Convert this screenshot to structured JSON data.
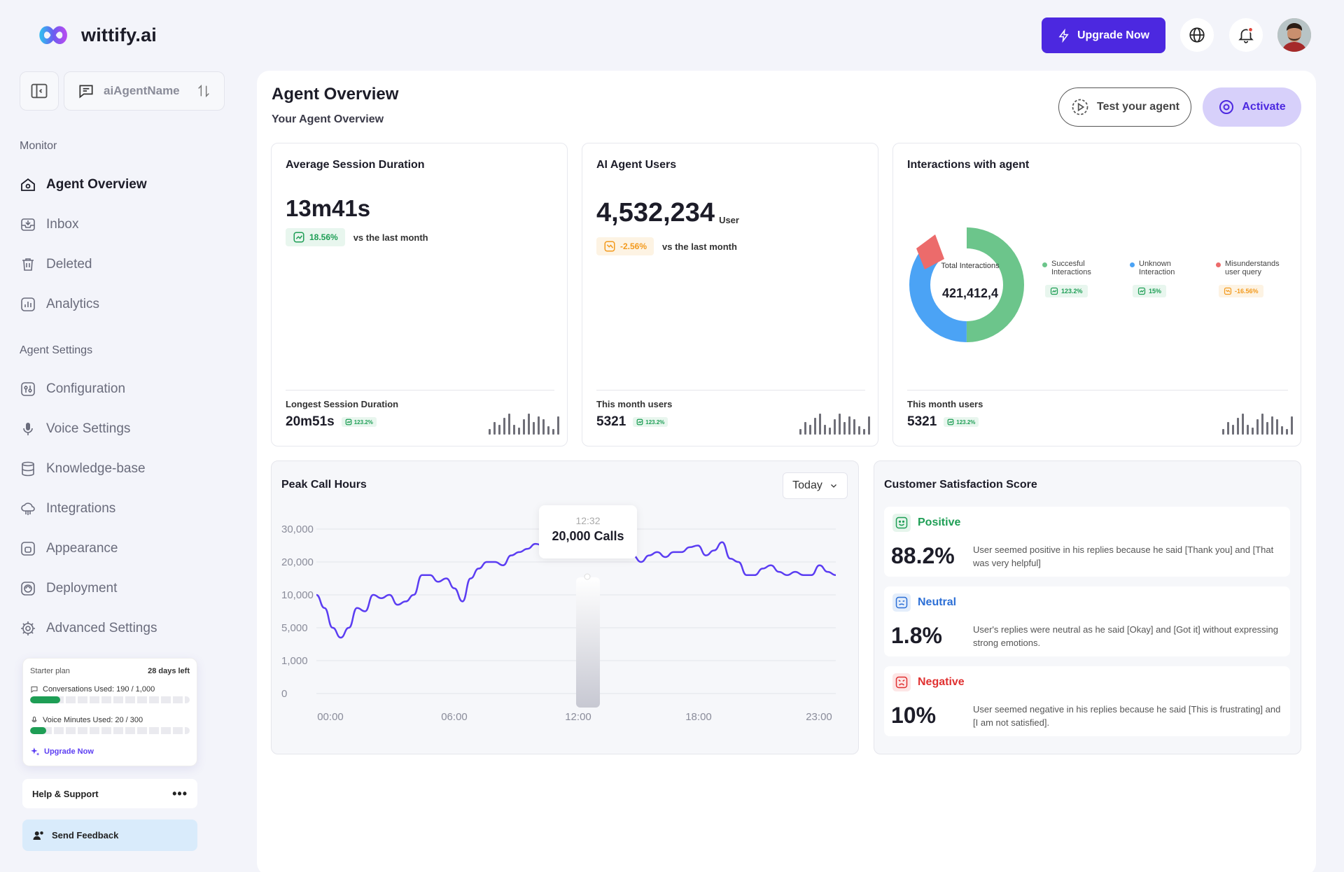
{
  "brand": {
    "name": "wittify.ai"
  },
  "header": {
    "upgrade_label": "Upgrade Now",
    "icons": [
      "globe-icon",
      "bell-icon",
      "avatar"
    ]
  },
  "agent_selector": {
    "name": "aiAgentName"
  },
  "sidebar": {
    "monitor_label": "Monitor",
    "monitor_items": [
      {
        "label": "Agent Overview",
        "icon": "home-icon",
        "active": true
      },
      {
        "label": "Inbox",
        "icon": "inbox-icon"
      },
      {
        "label": "Deleted",
        "icon": "trash-icon"
      },
      {
        "label": "Analytics",
        "icon": "analytics-icon"
      }
    ],
    "settings_label": "Agent Settings",
    "settings_items": [
      {
        "label": "Configuration",
        "icon": "sliders-icon"
      },
      {
        "label": "Voice Settings",
        "icon": "mic-icon"
      },
      {
        "label": "Knowledge-base",
        "icon": "database-icon"
      },
      {
        "label": "Integrations",
        "icon": "cloud-icon"
      },
      {
        "label": "Appearance",
        "icon": "appearance-icon"
      },
      {
        "label": "Deployment",
        "icon": "deploy-icon"
      },
      {
        "label": "Advanced Settings",
        "icon": "gear-icon"
      }
    ],
    "plan": {
      "name": "Starter plan",
      "days_left": "28 days left",
      "conversations_label": "Conversations Used: 190 / 1,000",
      "conversations_fraction": 0.19,
      "voice_label": "Voice Minutes Used: 20 / 300",
      "voice_fraction": 0.1,
      "upgrade_label": "Upgrade Now"
    },
    "help_label": "Help & Support",
    "feedback_label": "Send Feedback"
  },
  "page": {
    "title": "Agent Overview",
    "subtitle": "Your Agent Overview",
    "test_label": "Test your agent",
    "activate_label": "Activate"
  },
  "cards": {
    "session": {
      "title": "Average Session Duration",
      "value": "13m41s",
      "change": "18.56%",
      "vs": "vs the last month",
      "footer_label": "Longest Session Duration",
      "footer_value": "20m51s",
      "footer_change": "123.2%"
    },
    "users": {
      "title": "AI Agent Users",
      "value": "4,532,234",
      "unit": "User",
      "change": "-2.56%",
      "vs": "vs the last month",
      "footer_label": "This month users",
      "footer_value": "5321",
      "footer_change": "123.2%"
    },
    "interactions": {
      "title": "Interactions with agent",
      "total_label": "Total Interactions",
      "total_value": "421,412,4",
      "legend": [
        {
          "label": "Succesful Interactions",
          "change": "123.2%",
          "color": "#6cc58b"
        },
        {
          "label": "Unknown Interaction",
          "change": "15%",
          "color": "#4ba3f5"
        },
        {
          "label": "Misunderstands user query",
          "change": "-16.56%",
          "color": "#ec6b6b"
        }
      ],
      "footer_label": "This month users",
      "footer_value": "5321",
      "footer_change": "123.2%"
    }
  },
  "peak": {
    "title": "Peak Call Hours",
    "range": "Today",
    "tooltip_time": "12:32",
    "tooltip_value": "20,000 Calls"
  },
  "chart_data": {
    "type": "line",
    "title": "Peak Call Hours",
    "xlabel": "",
    "ylabel": "",
    "x_ticks": [
      "00:00",
      "06:00",
      "12:00",
      "18:00",
      "23:00"
    ],
    "y_ticks": [
      "30,000",
      "20,000",
      "10,000",
      "5,000",
      "1,000",
      "0"
    ],
    "series": [
      {
        "values": [
          3.0,
          2.6,
          2.0,
          1.7,
          2.0,
          2.6,
          2.5,
          3.0,
          2.9,
          3.0,
          2.7,
          2.8,
          3.0,
          3.6,
          3.6,
          3.4,
          3.5,
          3.2,
          2.8,
          3.5,
          3.8,
          4.0,
          4.0,
          3.9,
          4.2,
          4.3,
          4.4,
          4.55,
          4.5,
          4.7,
          4.9,
          4.8,
          4.9,
          5.0,
          4.7,
          4.2,
          4.35,
          4.2,
          4.3,
          4.2,
          4.0,
          4.2,
          4.3,
          4.15,
          4.3,
          4.3,
          4.45,
          4.5,
          4.2,
          4.35,
          4.6,
          4.1,
          4.0,
          3.6,
          3.6,
          3.8,
          3.9,
          3.7,
          3.6,
          3.7,
          3.6,
          3.6,
          3.9,
          3.7,
          3.6
        ]
      }
    ],
    "highlight": {
      "x": "12:32",
      "value": "20,000 Calls"
    },
    "grid": true
  },
  "satisfaction": {
    "title": "Customer Satisfaction Score",
    "items": [
      {
        "label": "Positive",
        "value": "88.2%",
        "desc": "User seemed positive in his replies because he said [Thank you] and [That was very helpful]",
        "color": "#1e9e55",
        "icon": "smile-icon"
      },
      {
        "label": "Neutral",
        "value": "1.8%",
        "desc": "User's replies were neutral as he said [Okay] and [Got it] without expressing strong emotions.",
        "color": "#2c6fd6",
        "icon": "neutral-face-icon"
      },
      {
        "label": "Negative",
        "value": "10%",
        "desc": "User seemed negative in his replies because he said [This is frustrating] and [I am not satisfied].",
        "color": "#e03131",
        "icon": "angry-face-icon"
      }
    ]
  }
}
